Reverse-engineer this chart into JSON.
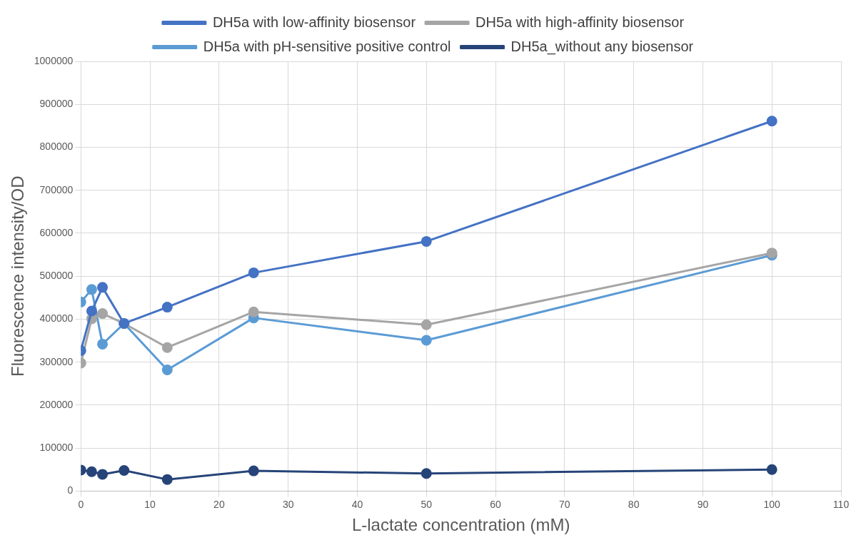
{
  "chart_data": {
    "type": "line",
    "xlabel": "L-lactate concentration (mM)",
    "ylabel": "Fluorescence intensity/OD",
    "x": [
      0,
      1.5625,
      3.125,
      6.25,
      12.5,
      25,
      50,
      100
    ],
    "series": [
      {
        "name": "DH5a with low-affinity biosensor",
        "color": "#4472c4",
        "values": [
          327000,
          419000,
          474000,
          390000,
          428000,
          508000,
          581000,
          861000
        ]
      },
      {
        "name": "DH5a with high-affinity biosensor",
        "color": "#a5a5a5",
        "values": [
          298000,
          401000,
          413000,
          390000,
          334000,
          417000,
          387000,
          554000
        ]
      },
      {
        "name": "DH5a with pH-sensitive positive control",
        "color": "#5b9bd5",
        "values": [
          440000,
          469000,
          342000,
          390000,
          282000,
          403000,
          351000,
          549000
        ]
      },
      {
        "name": "DH5a_without any biosensor",
        "color": "#264478",
        "values": [
          49000,
          45000,
          39000,
          48000,
          27000,
          47000,
          41000,
          50000
        ]
      }
    ],
    "xlim": [
      0,
      110
    ],
    "xticks": [
      0,
      10,
      20,
      30,
      40,
      50,
      60,
      70,
      80,
      90,
      100,
      110
    ],
    "ylim": [
      0,
      1000000
    ],
    "yticks": [
      0,
      100000,
      200000,
      300000,
      400000,
      500000,
      600000,
      700000,
      800000,
      900000,
      1000000
    ],
    "grid": true,
    "legend": "top",
    "marker": "circle",
    "line_style": "solid"
  }
}
